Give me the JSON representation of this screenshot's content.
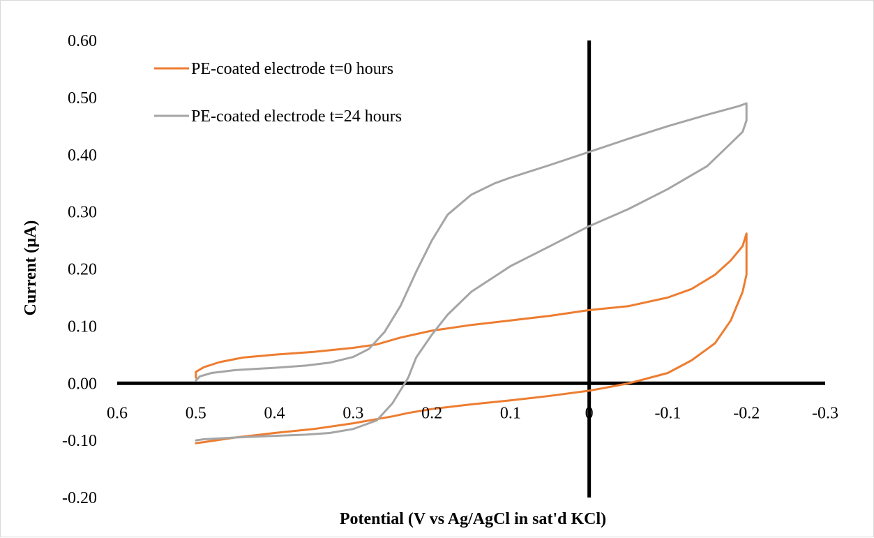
{
  "chart_data": {
    "type": "line",
    "title": "",
    "xlabel": "Potential (V vs Ag/AgCl in sat'd KCl)",
    "ylabel": "Current (µA)",
    "xlim": [
      0.6,
      -0.3
    ],
    "ylim": [
      -0.2,
      0.6
    ],
    "x_reversed": true,
    "x_ticks": [
      0.6,
      0.5,
      0.4,
      0.3,
      0.2,
      0.1,
      0,
      -0.1,
      -0.2,
      -0.3
    ],
    "x_tick_labels": [
      "0.6",
      "0.5",
      "0.4",
      "0.3",
      "0.2",
      "0.1",
      "0",
      "-0.1",
      "-0.2",
      "-0.3"
    ],
    "y_ticks": [
      -0.2,
      -0.1,
      0.0,
      0.1,
      0.2,
      0.3,
      0.4,
      0.5,
      0.6
    ],
    "y_tick_labels": [
      "-0.20",
      "-0.10",
      "0.00",
      "0.10",
      "0.20",
      "0.30",
      "0.40",
      "0.50",
      "0.60"
    ],
    "grid": false,
    "legend_position": "top-left",
    "series": [
      {
        "name": "PE-coated electrode t=0 hours",
        "color": "#ED7D31",
        "x": [
          0.5,
          0.5,
          0.49,
          0.47,
          0.44,
          0.4,
          0.35,
          0.3,
          0.27,
          0.24,
          0.2,
          0.15,
          0.1,
          0.05,
          0.0,
          -0.05,
          -0.1,
          -0.13,
          -0.16,
          -0.18,
          -0.195,
          -0.2,
          -0.2,
          -0.195,
          -0.18,
          -0.16,
          -0.13,
          -0.1,
          -0.07,
          -0.05,
          -0.02,
          0.0,
          0.05,
          0.1,
          0.15,
          0.2,
          0.23,
          0.25,
          0.3,
          0.35,
          0.4,
          0.45,
          0.49,
          0.5
        ],
        "y": [
          0.01,
          0.02,
          0.028,
          0.037,
          0.045,
          0.05,
          0.055,
          0.062,
          0.068,
          0.08,
          0.092,
          0.102,
          0.11,
          0.118,
          0.128,
          0.135,
          0.15,
          0.165,
          0.19,
          0.215,
          0.24,
          0.262,
          0.19,
          0.16,
          0.11,
          0.07,
          0.04,
          0.018,
          0.007,
          0.0,
          -0.008,
          -0.013,
          -0.022,
          -0.03,
          -0.037,
          -0.045,
          -0.052,
          -0.058,
          -0.07,
          -0.08,
          -0.087,
          -0.095,
          -0.103,
          -0.105
        ]
      },
      {
        "name": "PE-coated electrode t=24 hours",
        "color": "#A5A5A5",
        "x": [
          0.5,
          0.495,
          0.48,
          0.45,
          0.4,
          0.36,
          0.33,
          0.3,
          0.28,
          0.26,
          0.24,
          0.22,
          0.2,
          0.18,
          0.15,
          0.12,
          0.1,
          0.05,
          0.0,
          -0.05,
          -0.1,
          -0.15,
          -0.19,
          -0.2,
          -0.2,
          -0.195,
          -0.18,
          -0.15,
          -0.1,
          -0.05,
          0.0,
          0.05,
          0.1,
          0.15,
          0.18,
          0.2,
          0.22,
          0.23,
          0.25,
          0.27,
          0.3,
          0.33,
          0.36,
          0.4,
          0.45,
          0.49,
          0.5
        ],
        "y": [
          0.005,
          0.012,
          0.018,
          0.023,
          0.027,
          0.031,
          0.036,
          0.046,
          0.06,
          0.09,
          0.135,
          0.195,
          0.25,
          0.295,
          0.33,
          0.35,
          0.36,
          0.382,
          0.405,
          0.428,
          0.45,
          0.47,
          0.485,
          0.49,
          0.46,
          0.44,
          0.42,
          0.38,
          0.34,
          0.305,
          0.275,
          0.24,
          0.205,
          0.16,
          0.12,
          0.085,
          0.045,
          0.01,
          -0.035,
          -0.065,
          -0.08,
          -0.087,
          -0.09,
          -0.092,
          -0.095,
          -0.098,
          -0.1
        ]
      }
    ]
  }
}
